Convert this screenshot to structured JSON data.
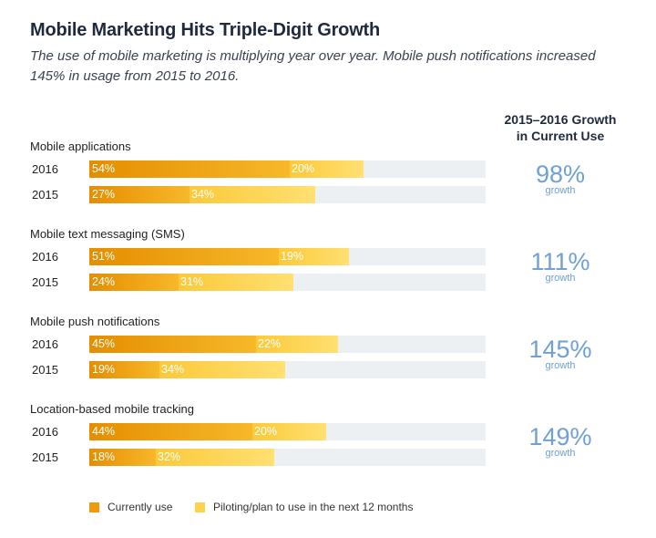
{
  "title": "Mobile Marketing Hits Triple-Digit Growth",
  "subtitle": "The use of mobile marketing is multiplying year over year. Mobile push notifications increased 145% in usage from 2015 to 2016.",
  "growth_header": [
    "2015–2016 Growth",
    "in Current Use"
  ],
  "colors": {
    "currently_use": "#ef9a0d",
    "planning": "#fdd24e",
    "track": "#edf0f3",
    "growth_text": "#6fa0d6"
  },
  "chart_data": {
    "type": "bar",
    "orientation": "horizontal",
    "stacked": true,
    "title": "Mobile Marketing Hits Triple-Digit Growth",
    "xlim": [
      0,
      100
    ],
    "legend": [
      {
        "key": "currently_use",
        "label": "Currently use"
      },
      {
        "key": "planning",
        "label": "Piloting/plan to use in the next 12 months"
      }
    ],
    "groups": [
      {
        "category": "Mobile applications",
        "growth": "98%",
        "growth_label": "growth",
        "rows": [
          {
            "year": "2016",
            "currently_use": 54,
            "planning": 20
          },
          {
            "year": "2015",
            "currently_use": 27,
            "planning": 34
          }
        ]
      },
      {
        "category": "Mobile text messaging (SMS)",
        "growth": "111%",
        "growth_label": "growth",
        "rows": [
          {
            "year": "2016",
            "currently_use": 51,
            "planning": 19
          },
          {
            "year": "2015",
            "currently_use": 24,
            "planning": 31
          }
        ]
      },
      {
        "category": "Mobile push notifications",
        "growth": "145%",
        "growth_label": "growth",
        "rows": [
          {
            "year": "2016",
            "currently_use": 45,
            "planning": 22
          },
          {
            "year": "2015",
            "currently_use": 19,
            "planning": 34
          }
        ]
      },
      {
        "category": "Location-based mobile tracking",
        "growth": "149%",
        "growth_label": "growth",
        "rows": [
          {
            "year": "2016",
            "currently_use": 44,
            "planning": 20
          },
          {
            "year": "2015",
            "currently_use": 18,
            "planning": 32
          }
        ]
      }
    ]
  }
}
